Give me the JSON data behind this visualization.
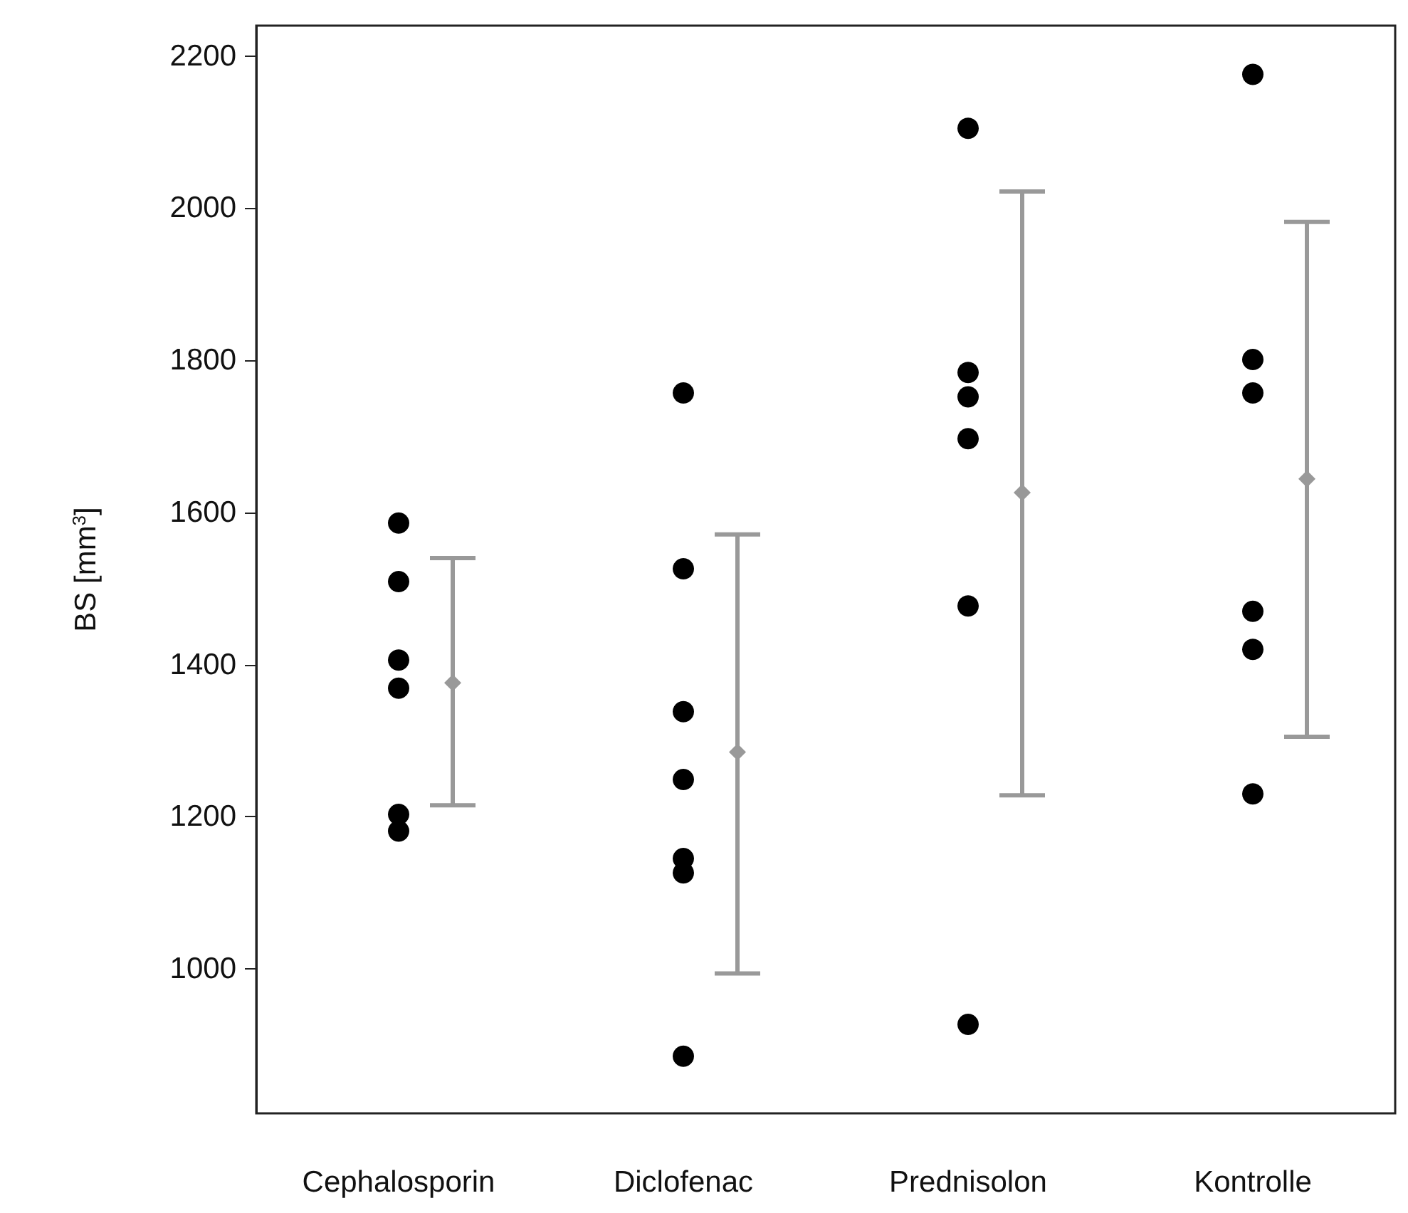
{
  "chart_data": {
    "type": "scatter",
    "ylabel": "BS [mm$^{3}$]",
    "categories": [
      "Cephalosporin",
      "Diclofenac",
      "Prednisolon",
      "Kontrolle"
    ],
    "series": [
      {
        "color": "#000000",
        "marker": "circle",
        "x": [
          "Cephalosporin",
          "Cephalosporin",
          "Cephalosporin",
          "Cephalosporin",
          "Cephalosporin",
          "Cephalosporin",
          "Diclofenac",
          "Diclofenac",
          "Diclofenac",
          "Diclofenac",
          "Diclofenac",
          "Diclofenac",
          "Diclofenac",
          "Prednisolon",
          "Prednisolon",
          "Prednisolon",
          "Prednisolon",
          "Prednisolon",
          "Prednisolon",
          "Kontrolle",
          "Kontrolle",
          "Kontrolle",
          "Kontrolle",
          "Kontrolle",
          "Kontrolle"
        ],
        "values": [
          1586,
          1509,
          1406,
          1369,
          1203,
          1181,
          1757,
          1526,
          1338,
          1249,
          1145,
          1126,
          885,
          2105,
          1784,
          1752,
          1697,
          1477,
          927,
          2176,
          1801,
          1757,
          1470,
          1420,
          1230
        ]
      },
      {
        "color": "#999999",
        "marker": "diamond",
        "values": [
          1376,
          1285,
          1626,
          1644
        ],
        "errors": [
          [
            1215,
            1540
          ],
          [
            994,
            1571
          ],
          [
            1228,
            2022
          ],
          [
            1305,
            1982
          ]
        ]
      }
    ],
    "ylim": [
      810,
      2240
    ],
    "yticks": [
      1000,
      1200,
      1400,
      1600,
      1800,
      2000,
      2200
    ],
    "grid": false
  }
}
